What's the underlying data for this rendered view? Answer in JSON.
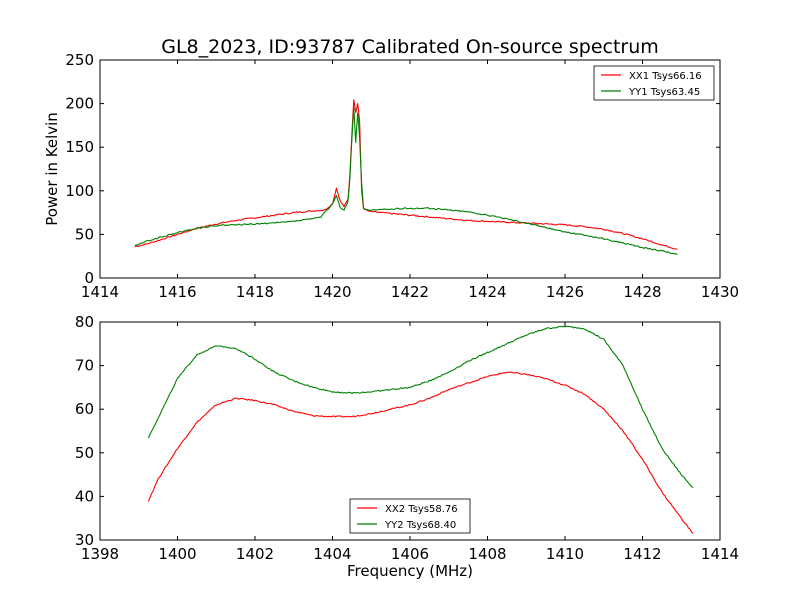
{
  "figure": {
    "title": "GL8_2023, ID:93787 Calibrated On-source spectrum",
    "xlabel": "Frequency (MHz)",
    "ylabel": "Power in Kelvin"
  },
  "chart_data": [
    {
      "type": "line",
      "title": "GL8_2023, ID:93787 Calibrated On-source spectrum",
      "xlabel": "",
      "ylabel": "Power in Kelvin",
      "xlim": [
        1414,
        1430
      ],
      "ylim": [
        0,
        250
      ],
      "xticks": [
        1414,
        1416,
        1418,
        1420,
        1422,
        1424,
        1426,
        1428,
        1430
      ],
      "yticks": [
        0,
        50,
        100,
        150,
        200,
        250
      ],
      "grid": false,
      "legend_position": "top-right",
      "series": [
        {
          "name": "XX1 Tsys66.16",
          "color": "#ff0000",
          "x": [
            1414.9,
            1415.2,
            1415.5,
            1416.0,
            1416.5,
            1417.0,
            1417.5,
            1418.0,
            1418.5,
            1419.0,
            1419.5,
            1419.8,
            1420.0,
            1420.1,
            1420.2,
            1420.3,
            1420.4,
            1420.45,
            1420.5,
            1420.55,
            1420.6,
            1420.65,
            1420.7,
            1420.75,
            1420.8,
            1420.9,
            1421.0,
            1421.5,
            1422.0,
            1422.5,
            1423.0,
            1423.5,
            1424.0,
            1424.5,
            1425.0,
            1425.5,
            1426.0,
            1426.5,
            1427.0,
            1427.5,
            1428.0,
            1428.5,
            1428.9
          ],
          "y": [
            36,
            39,
            43,
            50,
            57,
            62,
            66,
            69,
            72,
            75,
            77,
            78,
            85,
            103,
            88,
            82,
            90,
            120,
            165,
            205,
            190,
            200,
            180,
            100,
            80,
            77,
            76,
            74,
            72,
            70,
            68,
            66,
            65,
            64,
            63,
            62,
            61,
            59,
            56,
            51,
            45,
            38,
            33
          ]
        },
        {
          "name": "YY1 Tsys63.45",
          "color": "#008000",
          "x": [
            1414.9,
            1415.2,
            1415.5,
            1416.0,
            1416.5,
            1417.0,
            1417.5,
            1418.0,
            1418.5,
            1419.0,
            1419.5,
            1419.7,
            1420.0,
            1420.1,
            1420.2,
            1420.3,
            1420.4,
            1420.45,
            1420.5,
            1420.55,
            1420.6,
            1420.65,
            1420.7,
            1420.75,
            1420.8,
            1420.9,
            1421.0,
            1421.5,
            1422.0,
            1422.5,
            1423.0,
            1423.5,
            1424.0,
            1424.5,
            1425.0,
            1425.5,
            1426.0,
            1426.5,
            1427.0,
            1427.5,
            1428.0,
            1428.5,
            1428.9
          ],
          "y": [
            37,
            42,
            46,
            52,
            57,
            60,
            61,
            62,
            63,
            65,
            68,
            70,
            85,
            95,
            80,
            78,
            88,
            115,
            160,
            195,
            155,
            190,
            160,
            110,
            80,
            78,
            78,
            79,
            80,
            80,
            78,
            76,
            72,
            68,
            63,
            58,
            53,
            49,
            45,
            40,
            35,
            31,
            27
          ]
        }
      ]
    },
    {
      "type": "line",
      "title": "",
      "xlabel": "Frequency (MHz)",
      "ylabel": "",
      "xlim": [
        1398,
        1414
      ],
      "ylim": [
        30,
        80
      ],
      "xticks": [
        1398,
        1400,
        1402,
        1404,
        1406,
        1408,
        1410,
        1412,
        1414
      ],
      "yticks": [
        30,
        40,
        50,
        60,
        70,
        80
      ],
      "grid": false,
      "legend_position": "bottom-center",
      "series": [
        {
          "name": "XX2 Tsys58.76",
          "color": "#ff0000",
          "x": [
            1399.25,
            1399.5,
            1400.0,
            1400.5,
            1401.0,
            1401.5,
            1402.0,
            1402.5,
            1403.0,
            1403.5,
            1404.0,
            1404.5,
            1405.0,
            1405.5,
            1406.0,
            1406.5,
            1407.0,
            1407.5,
            1408.0,
            1408.5,
            1409.0,
            1409.5,
            1410.0,
            1410.5,
            1411.0,
            1411.5,
            1412.0,
            1412.5,
            1413.0,
            1413.3
          ],
          "y": [
            39,
            44,
            51,
            57,
            61,
            62.5,
            62,
            61,
            59.5,
            58.5,
            58.3,
            58.3,
            59,
            60,
            61,
            62.5,
            64.5,
            66,
            67.5,
            68.5,
            68,
            67,
            65.5,
            63.5,
            60,
            55,
            48.5,
            41,
            35,
            31.5
          ]
        },
        {
          "name": "YY2 Tsys68.40",
          "color": "#008000",
          "x": [
            1399.25,
            1399.5,
            1400.0,
            1400.5,
            1401.0,
            1401.5,
            1402.0,
            1402.5,
            1403.0,
            1403.5,
            1404.0,
            1404.5,
            1405.0,
            1405.5,
            1406.0,
            1406.5,
            1407.0,
            1407.5,
            1408.0,
            1408.5,
            1409.0,
            1409.5,
            1410.0,
            1410.5,
            1411.0,
            1411.5,
            1412.0,
            1412.5,
            1413.0,
            1413.3
          ],
          "y": [
            53.5,
            58,
            67,
            72.5,
            74.5,
            74,
            71.5,
            68.5,
            66.5,
            65,
            64,
            63.7,
            64,
            64.5,
            65,
            66.5,
            68.5,
            71,
            73,
            75,
            77,
            78.5,
            79,
            78.5,
            76,
            70,
            60,
            51,
            45,
            42
          ]
        }
      ]
    }
  ]
}
